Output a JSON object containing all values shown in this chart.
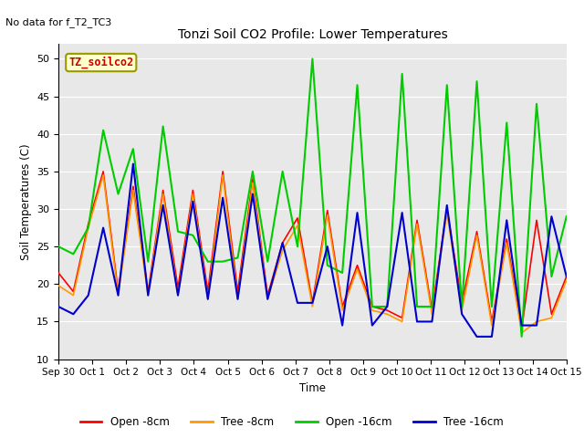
{
  "title": "Tonzi Soil CO2 Profile: Lower Temperatures",
  "subtitle": "No data for f_T2_TC3",
  "ylabel": "Soil Temperatures (C)",
  "xlabel": "Time",
  "ylim": [
    10,
    52
  ],
  "yticks": [
    10,
    15,
    20,
    25,
    30,
    35,
    40,
    45,
    50
  ],
  "bg_color": "#e8e8e8",
  "legend_label": "TZ_soilco2",
  "legend_box_color": "#ffffcc",
  "legend_box_edge": "#999900",
  "legend_text_color": "#cc0000",
  "series_colors": {
    "open_8cm": "#ff0000",
    "tree_8cm": "#ff9900",
    "open_16cm": "#00cc00",
    "tree_16cm": "#0000cc"
  },
  "x_tick_labels": [
    "Sep 30",
    "Oct 1",
    "Oct 2",
    "Oct 3",
    "Oct 4",
    "Oct 5",
    "Oct 6",
    "Oct 7",
    "Oct 8",
    "Oct 9",
    "Oct 10",
    "Oct 11",
    "Oct 12",
    "Oct 13",
    "Oct 14",
    "Oct 15"
  ],
  "open_8cm": [
    21.5,
    19.0,
    28.0,
    35.0,
    19.0,
    33.0,
    19.0,
    32.5,
    19.5,
    32.5,
    19.0,
    35.0,
    19.0,
    34.0,
    18.5,
    25.5,
    28.8,
    17.5,
    29.8,
    17.0,
    22.5,
    17.0,
    16.5,
    15.5,
    28.5,
    16.5,
    30.0,
    17.5,
    27.0,
    15.0,
    26.0,
    14.0,
    28.5,
    16.0,
    21.0
  ],
  "tree_8cm": [
    19.8,
    18.5,
    27.5,
    34.5,
    18.5,
    32.5,
    18.5,
    32.0,
    18.5,
    32.0,
    18.0,
    34.5,
    18.0,
    33.5,
    18.0,
    24.5,
    27.8,
    17.0,
    29.2,
    16.5,
    22.0,
    16.5,
    16.0,
    15.0,
    28.0,
    16.0,
    29.5,
    16.5,
    26.5,
    14.5,
    25.5,
    13.5,
    15.0,
    15.5,
    20.5
  ],
  "open_16cm": [
    25.0,
    24.0,
    27.5,
    40.5,
    32.0,
    38.0,
    23.0,
    41.0,
    27.0,
    26.5,
    23.0,
    23.0,
    23.5,
    35.0,
    23.0,
    35.0,
    25.0,
    50.0,
    22.5,
    21.5,
    46.5,
    17.0,
    17.0,
    48.0,
    17.0,
    17.0,
    46.5,
    17.0,
    47.0,
    17.0,
    41.5,
    13.0,
    44.0,
    21.0,
    29.0
  ],
  "tree_16cm": [
    17.0,
    16.0,
    18.5,
    27.5,
    18.5,
    36.0,
    18.5,
    30.5,
    18.5,
    31.0,
    18.0,
    31.5,
    18.0,
    32.0,
    18.0,
    25.5,
    17.5,
    17.5,
    25.0,
    14.5,
    29.5,
    14.5,
    17.0,
    29.5,
    15.0,
    15.0,
    30.5,
    16.0,
    13.0,
    13.0,
    28.5,
    14.5,
    14.5,
    29.0,
    21.0
  ]
}
